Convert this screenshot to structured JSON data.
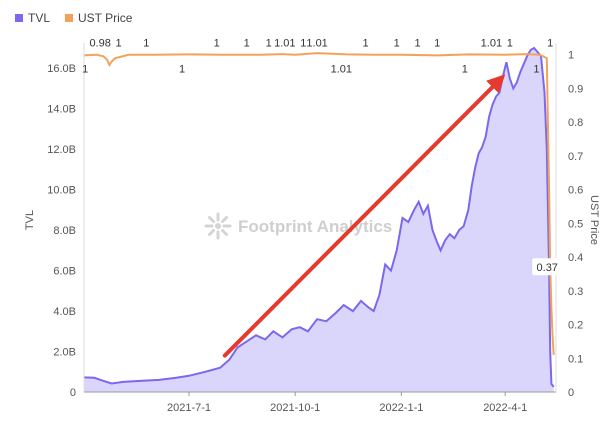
{
  "legend": {
    "tvl_label": "TVL",
    "ust_label": "UST Price"
  },
  "watermark": "Footprint Analytics",
  "colors": {
    "tvl_line": "#7b68ee",
    "tvl_fill": "#d6d1fb",
    "ust_line": "#f4a259",
    "arrow": "#e63a2e",
    "gridline": "#eeeeee"
  },
  "chart_data": {
    "type": "line",
    "xlabel": "",
    "x_ticks": [
      "2021-7-1",
      "2021-10-1",
      "2022-1-1",
      "2022-4-1"
    ],
    "y_left": {
      "label": "TVL",
      "unit": "B",
      "range": [
        0,
        17
      ],
      "ticks": [
        0,
        2,
        4,
        6,
        8,
        10,
        12,
        14,
        16
      ],
      "tick_labels": [
        "0",
        "2.0B",
        "4.0B",
        "6.0B",
        "8.0B",
        "10.0B",
        "12.0B",
        "14.0B",
        "16.0B"
      ]
    },
    "y_right": {
      "label": "UST Price",
      "range": [
        0,
        1.02
      ],
      "ticks": [
        0,
        0.1,
        0.2,
        0.3,
        0.4,
        0.5,
        0.6,
        0.7,
        0.8,
        0.9,
        1
      ],
      "tick_labels": [
        "0",
        "0.1",
        "0.2",
        "0.3",
        "0.4",
        "0.5",
        "0.6",
        "0.7",
        "0.8",
        "0.9",
        "1"
      ]
    },
    "series": [
      {
        "name": "TVL",
        "axis": "left",
        "points": [
          [
            "2021-04-01",
            0.72
          ],
          [
            "2021-04-10",
            0.7
          ],
          [
            "2021-04-18",
            0.55
          ],
          [
            "2021-04-25",
            0.42
          ],
          [
            "2021-05-05",
            0.5
          ],
          [
            "2021-05-20",
            0.55
          ],
          [
            "2021-06-05",
            0.6
          ],
          [
            "2021-06-20",
            0.7
          ],
          [
            "2021-07-01",
            0.8
          ],
          [
            "2021-07-15",
            1.0
          ],
          [
            "2021-07-28",
            1.2
          ],
          [
            "2021-08-05",
            1.6
          ],
          [
            "2021-08-12",
            2.2
          ],
          [
            "2021-08-20",
            2.5
          ],
          [
            "2021-08-28",
            2.8
          ],
          [
            "2021-09-05",
            2.6
          ],
          [
            "2021-09-12",
            3.0
          ],
          [
            "2021-09-20",
            2.7
          ],
          [
            "2021-09-28",
            3.1
          ],
          [
            "2021-10-05",
            3.2
          ],
          [
            "2021-10-12",
            3.0
          ],
          [
            "2021-10-20",
            3.6
          ],
          [
            "2021-10-28",
            3.5
          ],
          [
            "2021-11-05",
            3.9
          ],
          [
            "2021-11-12",
            4.3
          ],
          [
            "2021-11-20",
            4.0
          ],
          [
            "2021-11-27",
            4.5
          ],
          [
            "2021-12-03",
            4.2
          ],
          [
            "2021-12-08",
            4.0
          ],
          [
            "2021-12-13",
            4.8
          ],
          [
            "2021-12-18",
            6.3
          ],
          [
            "2021-12-23",
            6.0
          ],
          [
            "2021-12-28",
            7.0
          ],
          [
            "2022-01-02",
            8.6
          ],
          [
            "2022-01-07",
            8.4
          ],
          [
            "2022-01-12",
            9.0
          ],
          [
            "2022-01-16",
            9.4
          ],
          [
            "2022-01-20",
            8.8
          ],
          [
            "2022-01-24",
            9.2
          ],
          [
            "2022-01-28",
            8.0
          ],
          [
            "2022-02-01",
            7.4
          ],
          [
            "2022-02-04",
            7.0
          ],
          [
            "2022-02-08",
            7.5
          ],
          [
            "2022-02-12",
            7.8
          ],
          [
            "2022-02-16",
            7.6
          ],
          [
            "2022-02-20",
            8.0
          ],
          [
            "2022-02-24",
            8.2
          ],
          [
            "2022-02-28",
            9.0
          ],
          [
            "2022-03-03",
            10.2
          ],
          [
            "2022-03-06",
            11.1
          ],
          [
            "2022-03-09",
            11.8
          ],
          [
            "2022-03-12",
            12.1
          ],
          [
            "2022-03-15",
            12.6
          ],
          [
            "2022-03-18",
            13.6
          ],
          [
            "2022-03-21",
            14.2
          ],
          [
            "2022-03-24",
            14.6
          ],
          [
            "2022-03-27",
            14.8
          ],
          [
            "2022-03-30",
            15.6
          ],
          [
            "2022-04-02",
            16.3
          ],
          [
            "2022-04-05",
            15.5
          ],
          [
            "2022-04-08",
            15.0
          ],
          [
            "2022-04-11",
            15.3
          ],
          [
            "2022-04-14",
            15.8
          ],
          [
            "2022-04-17",
            16.2
          ],
          [
            "2022-04-20",
            16.6
          ],
          [
            "2022-04-23",
            16.9
          ],
          [
            "2022-04-26",
            17.0
          ],
          [
            "2022-04-29",
            16.8
          ],
          [
            "2022-05-02",
            16.6
          ],
          [
            "2022-05-05",
            14.8
          ],
          [
            "2022-05-07",
            12.0
          ],
          [
            "2022-05-09",
            6.0
          ],
          [
            "2022-05-10",
            2.0
          ],
          [
            "2022-05-11",
            0.4
          ],
          [
            "2022-05-13",
            0.25
          ]
        ]
      },
      {
        "name": "UST Price",
        "axis": "right",
        "points": [
          [
            "2021-04-01",
            0.998
          ],
          [
            "2021-04-12",
            1.0
          ],
          [
            "2021-04-18",
            0.995
          ],
          [
            "2021-04-21",
            0.985
          ],
          [
            "2021-04-23",
            0.97
          ],
          [
            "2021-04-25",
            0.98
          ],
          [
            "2021-04-28",
            0.99
          ],
          [
            "2021-05-10",
            1.0
          ],
          [
            "2021-06-01",
            1.0
          ],
          [
            "2021-07-01",
            1.001
          ],
          [
            "2021-08-01",
            1.0
          ],
          [
            "2021-09-01",
            1.0
          ],
          [
            "2021-09-20",
            1.002
          ],
          [
            "2021-10-01",
            1.0
          ],
          [
            "2021-10-20",
            1.005
          ],
          [
            "2021-11-15",
            1.001
          ],
          [
            "2021-12-10",
            1.0
          ],
          [
            "2022-01-01",
            1.0
          ],
          [
            "2022-02-01",
            0.998
          ],
          [
            "2022-03-01",
            1.001
          ],
          [
            "2022-04-01",
            1.0
          ],
          [
            "2022-04-20",
            1.002
          ],
          [
            "2022-05-01",
            1.0
          ],
          [
            "2022-05-07",
            0.99
          ],
          [
            "2022-05-08",
            0.8
          ],
          [
            "2022-05-09",
            0.6
          ],
          [
            "2022-05-10",
            0.37
          ],
          [
            "2022-05-11",
            0.25
          ],
          [
            "2022-05-12",
            0.17
          ],
          [
            "2022-05-13",
            0.11
          ]
        ]
      }
    ],
    "annotations": [
      {
        "text": "0.98",
        "x": "2021-04-15",
        "value": 0.98,
        "side": "above"
      },
      {
        "text": "1",
        "x": "2021-04-02",
        "value": 1.0,
        "side": "below"
      },
      {
        "text": "1",
        "x": "2021-05-01",
        "value": 1.0,
        "side": "above"
      },
      {
        "text": "1",
        "x": "2021-05-25",
        "value": 1.0,
        "side": "above"
      },
      {
        "text": "1",
        "x": "2021-06-25",
        "value": 1.0,
        "side": "below"
      },
      {
        "text": "1",
        "x": "2021-07-25",
        "value": 1.0,
        "side": "above"
      },
      {
        "text": "1",
        "x": "2021-08-20",
        "value": 1.0,
        "side": "above"
      },
      {
        "text": "1",
        "x": "2021-09-08",
        "value": 1.0,
        "side": "above"
      },
      {
        "text": "1.01",
        "x": "2021-09-22",
        "value": 1.01,
        "side": "above"
      },
      {
        "text": "1",
        "x": "2021-10-08",
        "value": 1.0,
        "side": "above"
      },
      {
        "text": "1.01",
        "x": "2021-10-20",
        "value": 1.01,
        "side": "above"
      },
      {
        "text": "1.01",
        "x": "2021-11-10",
        "value": 1.01,
        "side": "below"
      },
      {
        "text": "1",
        "x": "2021-12-01",
        "value": 1.0,
        "side": "above"
      },
      {
        "text": "1",
        "x": "2021-12-28",
        "value": 1.0,
        "side": "above"
      },
      {
        "text": "1",
        "x": "2022-01-15",
        "value": 1.0,
        "side": "above"
      },
      {
        "text": "1",
        "x": "2022-02-01",
        "value": 1.0,
        "side": "above"
      },
      {
        "text": "1",
        "x": "2022-02-25",
        "value": 1.0,
        "side": "below"
      },
      {
        "text": "1.01",
        "x": "2022-03-20",
        "value": 1.01,
        "side": "above"
      },
      {
        "text": "1",
        "x": "2022-04-05",
        "value": 1.0,
        "side": "above"
      },
      {
        "text": "1",
        "x": "2022-04-28",
        "value": 1.0,
        "side": "below"
      },
      {
        "text": "1",
        "x": "2022-05-10",
        "value": 1.0,
        "side": "above"
      },
      {
        "text": "0.37",
        "x": "2022-05-10",
        "value": 0.37,
        "side": "label-box"
      }
    ],
    "arrow": {
      "from": [
        "2021-08-01",
        1.8
      ],
      "to": [
        "2022-04-01",
        15.7
      ]
    },
    "grid": false,
    "legend_position": "top-left"
  }
}
